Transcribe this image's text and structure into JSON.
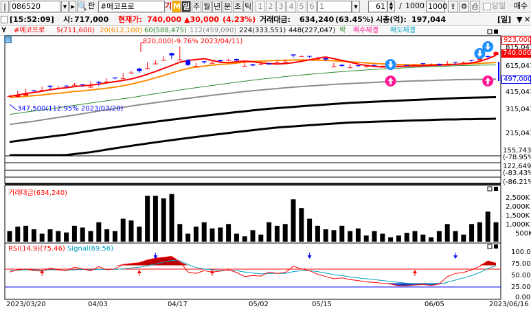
{
  "toolbar": {
    "code": "086520",
    "search_glyph": "🔍",
    "name": "#에코프로",
    "tab_small_m": "M",
    "periods": [
      "일",
      "주",
      "월",
      "년",
      "분",
      "초",
      "틱"
    ],
    "numbers": [
      "1",
      "2",
      "3",
      "4",
      "5",
      "6",
      "1"
    ],
    "count": "61",
    "slash": "/",
    "range1": "1000",
    "range2": "1000",
    "today_label": "당일",
    "right_label": "매수"
  },
  "info": {
    "time": "[15:52:09]",
    "open_label": "시:",
    "open_value": "717,000",
    "current_label": "현재가:",
    "current_value": "740,000",
    "change": "▲30,000",
    "change_pct": "(4.23%)",
    "volume_amount_label": "거래대금:",
    "volume_amount_value": "634,240",
    "volume_amount_pct": "(63.45%)",
    "market_cap_label": "시총(억):",
    "market_cap_value": "197,044",
    "period_indicator": "[일]"
  },
  "legend": {
    "price": "#에코프로",
    "ma5": "5(711,600)",
    "ma20": "20(612,100)",
    "ma60": "60(588,475)",
    "ma112": "112(459,090)",
    "ma224": "224(333,551)",
    "ma448": "448(227,047)",
    "low_mark": "락",
    "buy_exec": "매수체결",
    "sell_exec": "매도체결"
  },
  "price_pane": {
    "high_annotation": "820,000(-9.76% 2023/04/11)",
    "low_annotation": "347,500(112.95% 2023/03/20)",
    "axis_labels": [
      "923,000",
      "815,041",
      "740,000",
      "615,041",
      "497,000",
      "415,041",
      "315,041",
      "215,041"
    ],
    "lower_labels": [
      "155,743",
      "(-78.95%",
      "122,649",
      "(-83.43%",
      "(-86.21%"
    ]
  },
  "volume_pane": {
    "title": "거래대금(634,240)",
    "axis_labels": [
      "2,500K",
      "2,000K",
      "1,500K",
      "1,000K",
      "500K"
    ]
  },
  "rsi_pane": {
    "title_rsi": "RSI(14,9)(75.46)",
    "title_signal": "Signal(69.56)",
    "axis_labels": [
      "100.00",
      "75.00",
      "50.00",
      "25.00",
      "0.00"
    ]
  },
  "x_axis": [
    "2023/03/20",
    "04/03",
    "04/17",
    "05/02",
    "05/15",
    "06/05",
    "2023/06/16"
  ],
  "colors": {
    "up": "#ff0000",
    "down": "#0000ff",
    "ma5": "#ff0000",
    "ma20": "#ff8c00",
    "ma60": "#2e8b2e",
    "ma112": "#8c8c8c",
    "ma224": "#000000",
    "ma448": "#000000",
    "volume": "#000000",
    "rsi": "#ff0000",
    "signal": "#00a0c0"
  },
  "candles": [
    [
      1,
      348,
      1,
      335,
      338
    ],
    [
      1,
      372,
      1,
      332,
      345
    ],
    [
      1,
      386,
      1,
      340,
      355
    ],
    [
      0,
      378,
      1,
      365,
      372
    ],
    [
      1,
      400,
      1,
      372,
      375
    ],
    [
      0,
      410,
      1,
      385,
      400
    ],
    [
      1,
      408,
      1,
      387,
      393
    ],
    [
      0,
      410,
      1,
      395,
      405
    ],
    [
      1,
      428,
      1,
      410,
      412
    ],
    [
      0,
      420,
      1,
      398,
      415
    ],
    [
      1,
      440,
      1,
      395,
      400
    ],
    [
      0,
      440,
      1,
      408,
      430
    ],
    [
      1,
      466,
      1,
      434,
      438
    ],
    [
      0,
      474,
      1,
      456,
      465
    ],
    [
      1,
      510,
      1,
      460,
      462
    ],
    [
      1,
      532,
      1,
      510,
      515
    ],
    [
      0,
      560,
      1,
      512,
      530
    ],
    [
      1,
      618,
      1,
      552,
      556
    ],
    [
      1,
      644,
      1,
      600,
      605
    ],
    [
      1,
      690,
      1,
      640,
      645
    ],
    [
      0,
      736,
      1,
      655,
      700
    ],
    [
      1,
      820,
      1,
      645,
      650
    ],
    [
      0,
      656,
      1,
      580,
      590
    ],
    [
      1,
      615,
      1,
      575,
      578
    ],
    [
      0,
      632,
      1,
      605,
      620
    ],
    [
      1,
      634,
      1,
      605,
      612
    ],
    [
      0,
      648,
      1,
      622,
      630
    ],
    [
      1,
      658,
      1,
      638,
      640
    ],
    [
      0,
      660,
      1,
      630,
      640
    ],
    [
      1,
      620,
      1,
      575,
      580
    ],
    [
      0,
      600,
      1,
      578,
      585
    ],
    [
      1,
      628,
      1,
      592,
      600
    ],
    [
      0,
      610,
      1,
      592,
      596
    ],
    [
      1,
      648,
      1,
      612,
      615
    ],
    [
      1,
      650,
      1,
      620,
      625
    ],
    [
      0,
      714,
      1,
      675,
      700
    ],
    [
      1,
      700,
      1,
      683,
      690
    ],
    [
      0,
      694,
      1,
      668,
      685
    ],
    [
      1,
      680,
      1,
      650,
      660
    ],
    [
      0,
      670,
      1,
      630,
      650
    ],
    [
      1,
      612,
      1,
      568,
      575
    ],
    [
      0,
      595,
      1,
      570,
      580
    ],
    [
      1,
      600,
      1,
      560,
      565
    ],
    [
      0,
      588,
      1,
      568,
      580
    ],
    [
      1,
      584,
      1,
      570,
      575
    ],
    [
      0,
      592,
      1,
      575,
      585
    ],
    [
      1,
      586,
      1,
      576,
      580
    ],
    [
      0,
      574,
      1,
      562,
      570
    ],
    [
      1,
      598,
      1,
      565,
      575
    ],
    [
      0,
      590,
      1,
      580,
      585
    ],
    [
      1,
      596,
      1,
      580,
      590
    ],
    [
      0,
      610,
      1,
      590,
      600
    ],
    [
      1,
      608,
      1,
      586,
      595
    ],
    [
      0,
      606,
      1,
      585,
      590
    ],
    [
      1,
      633,
      1,
      585,
      590
    ],
    [
      0,
      625,
      1,
      595,
      620
    ],
    [
      1,
      630,
      1,
      610,
      615
    ],
    [
      0,
      646,
      1,
      628,
      640
    ],
    [
      1,
      686,
      1,
      640,
      660
    ],
    [
      0,
      695,
      1,
      660,
      680
    ],
    [
      1,
      756,
      1,
      696,
      740
    ]
  ],
  "ma5": [
    338,
    346,
    355,
    362,
    370,
    380,
    388,
    394,
    402,
    408,
    412,
    420,
    430,
    438,
    448,
    460,
    478,
    500,
    525,
    555,
    585,
    620,
    640,
    650,
    660,
    640,
    620,
    615,
    625,
    632,
    625,
    612,
    605,
    600,
    605,
    615,
    630,
    645,
    665,
    680,
    660,
    640,
    620,
    600,
    585,
    575,
    570,
    572,
    575,
    578,
    580,
    582,
    585,
    588,
    592,
    596,
    602,
    612,
    630,
    660,
    700
  ],
  "ma20": [
    330,
    334,
    338,
    342,
    346,
    352,
    356,
    362,
    368,
    372,
    378,
    384,
    390,
    398,
    408,
    420,
    435,
    450,
    470,
    490,
    512,
    535,
    555,
    568,
    578,
    588,
    596,
    602,
    610,
    620,
    628,
    632,
    636,
    640,
    642,
    644,
    645,
    644,
    642,
    640,
    636,
    630,
    624,
    618,
    612,
    606,
    602,
    598,
    595,
    593,
    592,
    592,
    593,
    594,
    596,
    598,
    600,
    604,
    608,
    612,
    616
  ],
  "ma60": [
    245,
    250,
    255,
    260,
    265,
    270,
    276,
    282,
    288,
    294,
    300,
    306,
    312,
    318,
    324,
    330,
    338,
    346,
    354,
    362,
    370,
    378,
    386,
    394,
    402,
    410,
    418,
    426,
    434,
    442,
    450,
    458,
    465,
    472,
    480,
    487,
    494,
    500,
    506,
    512,
    518,
    524,
    530,
    535,
    540,
    545,
    550,
    554,
    558,
    562,
    566,
    570,
    573,
    576,
    579,
    582,
    584,
    586,
    588,
    589,
    590
  ],
  "ma112": [
    205,
    209,
    213,
    217,
    222,
    227,
    232,
    237,
    242,
    248,
    254,
    260,
    266,
    272,
    278,
    284,
    290,
    296,
    302,
    308,
    314,
    320,
    326,
    332,
    338,
    344,
    350,
    356,
    362,
    368,
    373,
    378,
    383,
    388,
    393,
    398,
    402,
    406,
    410,
    414,
    418,
    421,
    424,
    427,
    430,
    433,
    436,
    438,
    440,
    442,
    444,
    446,
    448,
    450,
    452,
    454,
    455,
    456,
    457,
    458,
    459
  ],
  "ma224": [
    150,
    153,
    156,
    159,
    162,
    165,
    168,
    171,
    175,
    179,
    183,
    187,
    191,
    195,
    199,
    203,
    207,
    211,
    215,
    219,
    223,
    227,
    231,
    235,
    239,
    243,
    247,
    251,
    255,
    259,
    263,
    267,
    271,
    274,
    277,
    280,
    283,
    286,
    289,
    292,
    295,
    298,
    301,
    303,
    305,
    307,
    309,
    311,
    313,
    315,
    317,
    319,
    321,
    323,
    325,
    327,
    329,
    330,
    331,
    332,
    333
  ],
  "ma448": [
    105,
    107,
    109,
    111,
    113,
    115,
    117,
    119,
    121,
    123,
    125,
    128,
    131,
    134,
    137,
    140,
    143,
    146,
    149,
    152,
    155,
    158,
    161,
    164,
    167,
    170,
    173,
    176,
    179,
    182,
    185,
    188,
    191,
    194,
    196,
    198,
    200,
    202,
    204,
    206,
    208,
    210,
    212,
    213,
    214,
    215,
    216,
    217,
    218,
    219,
    220,
    221,
    222,
    223,
    224,
    224,
    225,
    225,
    226,
    226,
    227
  ],
  "volume": [
    600,
    850,
    900,
    700,
    450,
    700,
    600,
    520,
    900,
    800,
    600,
    1100,
    700,
    600,
    1300,
    1200,
    850,
    2600,
    2600,
    2450,
    2700,
    1000,
    450,
    850,
    1100,
    750,
    800,
    1000,
    450,
    300,
    650,
    400,
    1100,
    900,
    1000,
    2400,
    1900,
    1300,
    900,
    700,
    650,
    900,
    600,
    750,
    350,
    600,
    450,
    250,
    350,
    500,
    600,
    400,
    250,
    600,
    1000,
    600,
    400,
    1000,
    1100,
    1700,
    1100
  ],
  "rsi": [
    55,
    60,
    62,
    58,
    57,
    64,
    60,
    58,
    66,
    62,
    58,
    67,
    60,
    62,
    72,
    74,
    76,
    82,
    86,
    88,
    90,
    78,
    55,
    52,
    58,
    55,
    57,
    60,
    54,
    45,
    47,
    46,
    55,
    52,
    54,
    68,
    62,
    58,
    50,
    45,
    40,
    42,
    38,
    36,
    33,
    32,
    30,
    28,
    24,
    24,
    26,
    27,
    25,
    28,
    45,
    52,
    54,
    60,
    68,
    80,
    75
  ],
  "signal": [
    58,
    59,
    60,
    60,
    59,
    60,
    60,
    59,
    60,
    61,
    60,
    61,
    61,
    61,
    62,
    64,
    66,
    69,
    73,
    77,
    81,
    80,
    72,
    65,
    62,
    60,
    59,
    59,
    58,
    55,
    53,
    51,
    52,
    52,
    52,
    56,
    58,
    58,
    56,
    53,
    49,
    47,
    44,
    42,
    40,
    38,
    36,
    34,
    32,
    30,
    29,
    28,
    28,
    28,
    32,
    37,
    42,
    47,
    54,
    63,
    69
  ],
  "buy_markers": [
    18,
    37,
    55
  ],
  "sell_markers": [
    4,
    16,
    25,
    50
  ],
  "price_buy_markers": [
    47,
    59
  ],
  "price_sell_markers": [
    47,
    58,
    59
  ]
}
